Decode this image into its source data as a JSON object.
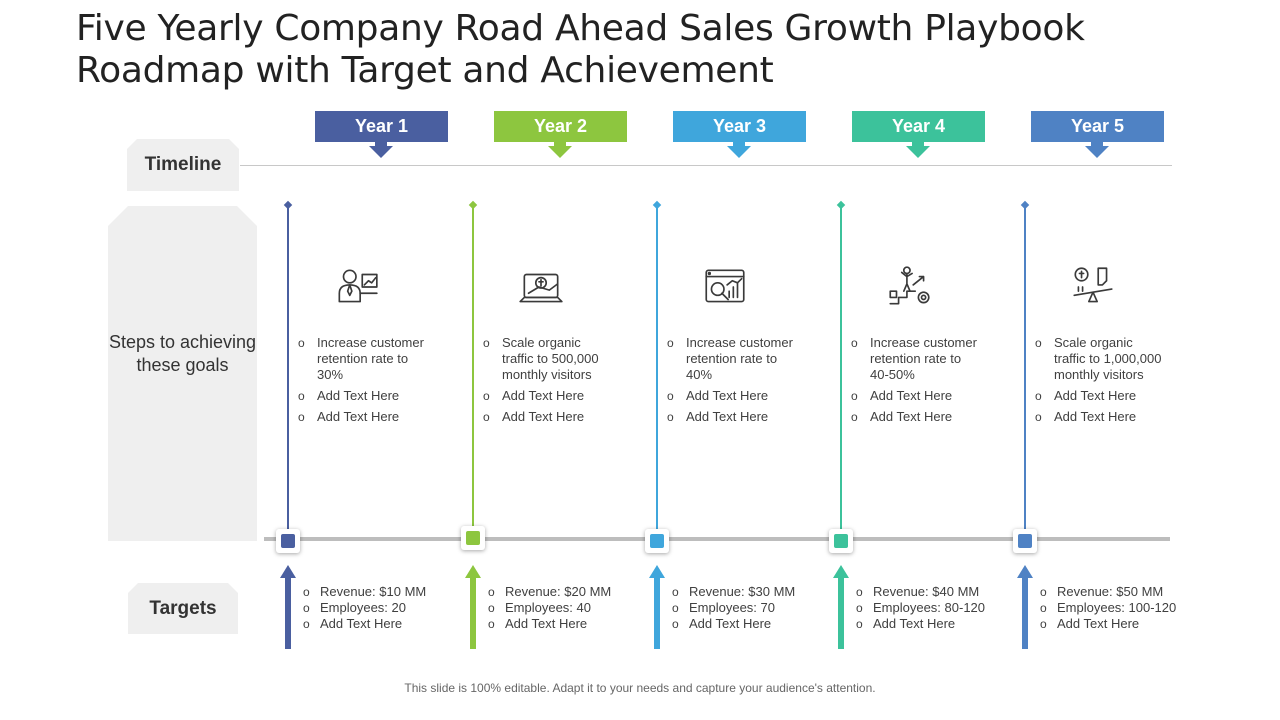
{
  "title": "Five Yearly Company Road Ahead Sales Growth Playbook Roadmap with Target and Achievement",
  "labels": {
    "timeline": "Timeline",
    "steps": "Steps to achieving these goals",
    "targets": "Targets"
  },
  "years": [
    {
      "label": "Year 1",
      "color": "#4a5fa0",
      "icon": "businessman-chart-icon",
      "steps": [
        "Increase customer retention rate to 30%",
        "Add Text Here",
        "Add Text Here"
      ],
      "targets": [
        "Revenue:  $10 MM",
        "Employees: 20",
        "Add Text Here"
      ]
    },
    {
      "label": "Year 2",
      "color": "#8dc63f",
      "icon": "laptop-money-icon",
      "steps": [
        "Scale organic traffic to 500,000 monthly visitors",
        "Add Text Here",
        "Add Text Here"
      ],
      "targets": [
        "Revenue:  $20 MM",
        "Employees: 40",
        "Add Text Here"
      ]
    },
    {
      "label": "Year 3",
      "color": "#3fa6dc",
      "icon": "analytics-dashboard-icon",
      "steps": [
        "Increase customer retention rate to 40%",
        "Add Text Here",
        "Add Text Here"
      ],
      "targets": [
        "Revenue:  $30 MM",
        "Employees: 70",
        "Add Text Here"
      ]
    },
    {
      "label": "Year 4",
      "color": "#3cc29b",
      "icon": "growth-stairs-icon",
      "steps": [
        "Increase customer retention rate to 40-50%",
        "Add Text Here",
        "Add Text Here"
      ],
      "targets": [
        "Revenue:  $40 MM",
        "Employees: 80-120",
        "Add Text Here"
      ]
    },
    {
      "label": "Year 5",
      "color": "#4f82c4",
      "icon": "money-balance-icon",
      "steps": [
        "Scale organic traffic to 1,000,000 monthly visitors",
        "Add Text Here",
        "Add Text Here"
      ],
      "targets": [
        "Revenue:  $50 MM",
        "Employees: 100-120",
        "Add Text Here"
      ]
    }
  ],
  "footer": "This slide is 100% editable. Adapt it to your needs and capture your audience's attention."
}
